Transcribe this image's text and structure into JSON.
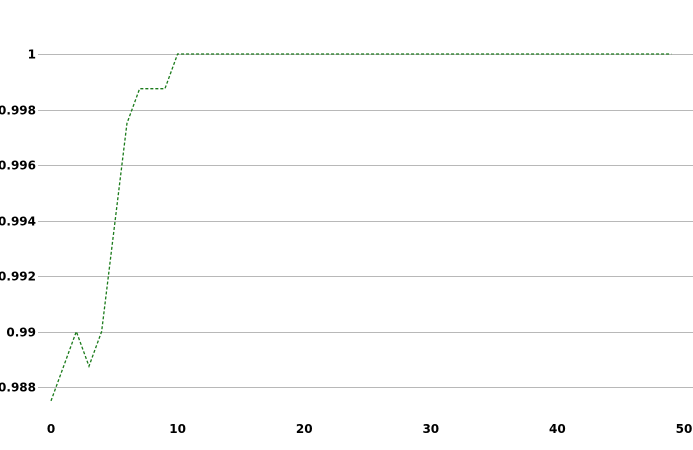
{
  "chart_data": {
    "type": "line",
    "title": "",
    "xlabel": "",
    "ylabel": "",
    "xlim": [
      0,
      50
    ],
    "ylim": [
      0.9868,
      1.0007
    ],
    "x_ticks": [
      0,
      10,
      20,
      30,
      40,
      50
    ],
    "x_tick_labels": [
      "0",
      "10",
      "20",
      "30",
      "40",
      "50"
    ],
    "y_ticks": [
      0.988,
      0.99,
      0.992,
      0.994,
      0.996,
      0.998,
      1
    ],
    "y_tick_labels": [
      "0.988",
      "0.99",
      "0.992",
      "0.994",
      "0.996",
      "0.998",
      "1"
    ],
    "grid": {
      "horizontal": true,
      "vertical": false
    },
    "legend": "none",
    "series": [
      {
        "color": "#1a7a1a",
        "line_style": "dashed",
        "x": [
          0,
          1,
          2,
          3,
          4,
          5,
          6,
          7,
          8,
          9,
          10,
          11,
          12,
          13,
          14,
          15,
          16,
          17,
          18,
          19,
          20,
          21,
          22,
          23,
          24,
          25,
          26,
          27,
          28,
          29,
          30,
          31,
          32,
          33,
          34,
          35,
          36,
          37,
          38,
          39,
          40,
          41,
          42,
          43,
          44,
          45,
          46,
          47,
          48,
          49
        ],
        "values": [
          0.9875,
          0.98875,
          0.99,
          0.98875,
          0.99,
          0.99375,
          0.9975,
          0.99875,
          0.99875,
          0.99875,
          1,
          1,
          1,
          1,
          1,
          1,
          1,
          1,
          1,
          1,
          1,
          1,
          1,
          1,
          1,
          1,
          1,
          1,
          1,
          1,
          1,
          1,
          1,
          1,
          1,
          1,
          1,
          1,
          1,
          1,
          1,
          1,
          1,
          1,
          1,
          1,
          1,
          1,
          1,
          1
        ]
      }
    ]
  }
}
